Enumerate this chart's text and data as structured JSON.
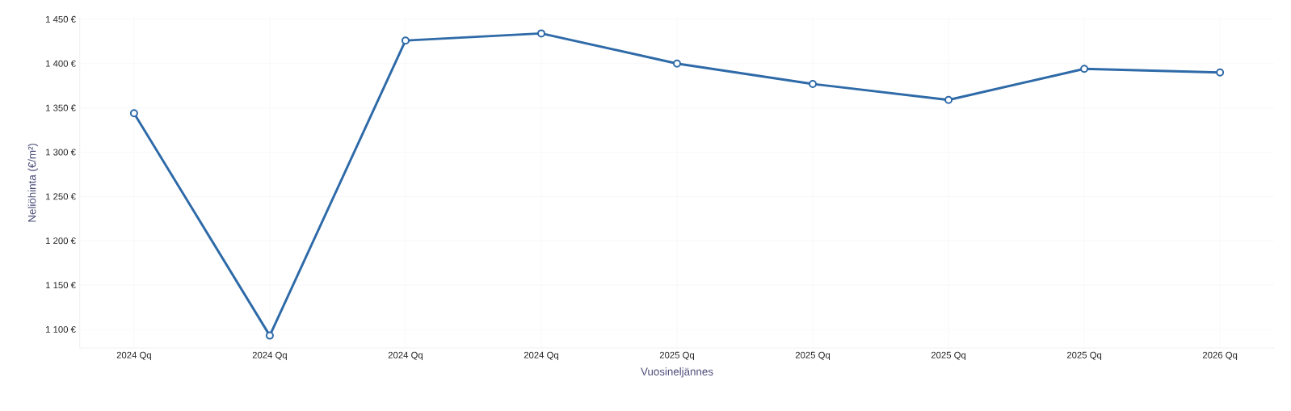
{
  "chart_data": {
    "type": "line",
    "xlabel": "Vuosineljännes",
    "ylabel": "Neliöhinta (€/m²)",
    "categories": [
      "2024 Qq",
      "2024 Qq",
      "2024 Qq",
      "2024 Qq",
      "2025 Qq",
      "2025 Qq",
      "2025 Qq",
      "2025 Qq",
      "2026 Qq"
    ],
    "series": [
      {
        "color": "#2e6aa8",
        "values": [
          1344,
          1093,
          1426,
          1434,
          1400,
          1377,
          1359,
          1394,
          1390
        ]
      }
    ],
    "ylim": [
      1079,
      1452
    ],
    "yticks": [
      {
        "value": 1100,
        "label": "1 100 €"
      },
      {
        "value": 1150,
        "label": "1 150 €"
      },
      {
        "value": 1200,
        "label": "1 200 €"
      },
      {
        "value": 1250,
        "label": "1 250 €"
      },
      {
        "value": 1300,
        "label": "1 300 €"
      },
      {
        "value": 1350,
        "label": "1 350 €"
      },
      {
        "value": 1400,
        "label": "1 400 €"
      },
      {
        "value": 1450,
        "label": "1 450 €"
      }
    ],
    "grid": true,
    "marker": "circle",
    "line_style": "solid"
  }
}
